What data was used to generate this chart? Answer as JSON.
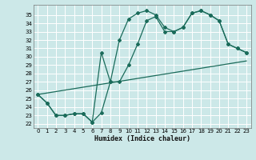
{
  "xlabel": "Humidex (Indice chaleur)",
  "bg_color": "#cce8e8",
  "grid_color": "#b8d8d8",
  "line_color": "#1a6b5a",
  "xlim": [
    -0.5,
    23.5
  ],
  "ylim": [
    21.5,
    36.2
  ],
  "xticks": [
    0,
    1,
    2,
    3,
    4,
    5,
    6,
    7,
    8,
    9,
    10,
    11,
    12,
    13,
    14,
    15,
    16,
    17,
    18,
    19,
    20,
    21,
    22,
    23
  ],
  "yticks": [
    22,
    23,
    24,
    25,
    26,
    27,
    28,
    29,
    30,
    31,
    32,
    33,
    34,
    35
  ],
  "curve1_x": [
    0,
    1,
    2,
    3,
    4,
    5,
    6,
    7,
    8,
    9,
    10,
    11,
    12,
    13,
    14,
    15,
    16,
    17,
    18,
    19,
    20,
    21,
    22,
    23
  ],
  "curve1_y": [
    25.5,
    24.5,
    23.0,
    23.0,
    23.2,
    23.2,
    22.2,
    23.3,
    27.0,
    32.0,
    34.5,
    35.2,
    35.5,
    35.0,
    33.5,
    33.0,
    33.5,
    35.2,
    35.5,
    35.0,
    34.3,
    31.5,
    31.0,
    30.5
  ],
  "curve2_x": [
    0,
    1,
    2,
    3,
    4,
    5,
    6,
    7,
    8,
    9,
    10,
    11,
    12,
    13,
    14,
    15,
    16,
    17,
    18,
    19,
    20,
    21,
    22,
    23
  ],
  "curve2_y": [
    25.5,
    24.5,
    23.0,
    23.0,
    23.2,
    23.2,
    22.2,
    30.5,
    27.0,
    27.0,
    29.0,
    31.5,
    34.3,
    34.8,
    33.0,
    33.0,
    33.5,
    35.2,
    35.5,
    35.0,
    34.3,
    31.5,
    31.0,
    30.5
  ],
  "line3_x": [
    0,
    23
  ],
  "line3_y": [
    25.5,
    29.5
  ]
}
